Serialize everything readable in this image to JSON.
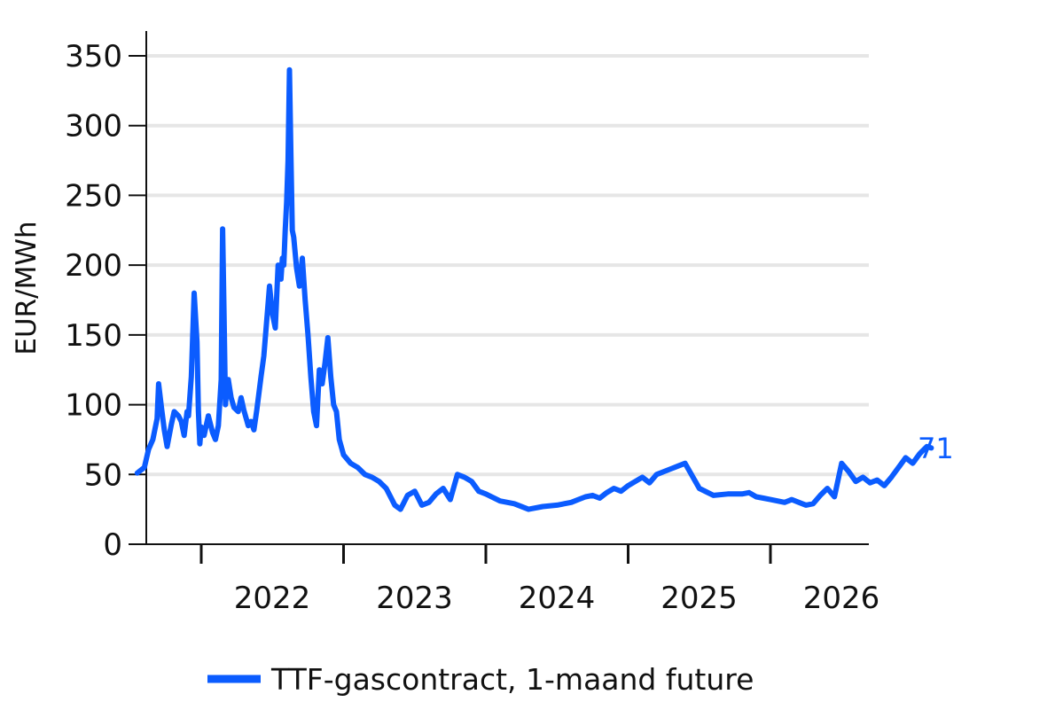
{
  "chart_data": {
    "type": "line",
    "ylabel": "EUR/MWh",
    "ylim": [
      0,
      350
    ],
    "yticks": [
      "0",
      "50",
      "100",
      "150",
      "200",
      "250",
      "300",
      "350"
    ],
    "xticks": [
      "2022",
      "2023",
      "2024",
      "2025",
      "2026"
    ],
    "grid": "horizontal",
    "legend_position": "bottom",
    "end_label": "71",
    "colors": {
      "series": "#0B5CFF",
      "axis": "#111111",
      "grid": "#e6e6e6"
    },
    "series": [
      {
        "name": "TTF-gascontract, 1-maand future",
        "x": [
          2021.55,
          2021.6,
          2021.63,
          2021.66,
          2021.69,
          2021.7,
          2021.72,
          2021.74,
          2021.76,
          2021.79,
          2021.81,
          2021.84,
          2021.86,
          2021.88,
          2021.9,
          2021.91,
          2021.93,
          2021.95,
          2021.97,
          2021.98,
          2021.99,
          2022.0,
          2022.02,
          2022.05,
          2022.08,
          2022.1,
          2022.12,
          2022.14,
          2022.15,
          2022.16,
          2022.17,
          2022.18,
          2022.19,
          2022.21,
          2022.23,
          2022.26,
          2022.28,
          2022.3,
          2022.33,
          2022.35,
          2022.37,
          2022.39,
          2022.42,
          2022.44,
          2022.46,
          2022.48,
          2022.5,
          2022.52,
          2022.54,
          2022.56,
          2022.57,
          2022.58,
          2022.59,
          2022.6,
          2022.61,
          2022.62,
          2022.63,
          2022.64,
          2022.65,
          2022.67,
          2022.69,
          2022.71,
          2022.73,
          2022.75,
          2022.77,
          2022.79,
          2022.81,
          2022.83,
          2022.85,
          2022.87,
          2022.89,
          2022.91,
          2022.93,
          2022.95,
          2022.97,
          2023.0,
          2023.05,
          2023.1,
          2023.15,
          2023.2,
          2023.25,
          2023.3,
          2023.33,
          2023.36,
          2023.4,
          2023.45,
          2023.5,
          2023.55,
          2023.6,
          2023.65,
          2023.7,
          2023.75,
          2023.8,
          2023.85,
          2023.9,
          2023.95,
          2024.0,
          2024.1,
          2024.2,
          2024.3,
          2024.4,
          2024.5,
          2024.6,
          2024.65,
          2024.7,
          2024.75,
          2024.8,
          2024.85,
          2024.9,
          2024.95,
          2025.0,
          2025.05,
          2025.1,
          2025.15,
          2025.2,
          2025.3,
          2025.4,
          2025.5,
          2025.6,
          2025.7,
          2025.8,
          2025.85,
          2025.9,
          2025.95,
          2026.0,
          2026.05,
          2026.1,
          2026.15,
          2026.2,
          2026.25,
          2026.3,
          2026.35,
          2026.4,
          2026.45,
          2026.5,
          2026.55,
          2026.6,
          2026.65,
          2026.7,
          2026.75,
          2026.8,
          2026.85,
          2026.9,
          2026.95,
          2027.0,
          2027.05,
          2027.1,
          2027.13
        ],
        "values": [
          51,
          55,
          68,
          75,
          90,
          115,
          98,
          82,
          70,
          86,
          95,
          92,
          88,
          78,
          95,
          92,
          120,
          180,
          145,
          95,
          72,
          84,
          78,
          92,
          80,
          75,
          85,
          118,
          226,
          165,
          100,
          112,
          118,
          105,
          98,
          95,
          105,
          96,
          85,
          88,
          82,
          96,
          120,
          135,
          160,
          185,
          165,
          155,
          200,
          190,
          205,
          200,
          225,
          245,
          275,
          340,
          280,
          225,
          220,
          198,
          185,
          205,
          175,
          150,
          120,
          95,
          85,
          125,
          115,
          130,
          148,
          120,
          100,
          95,
          75,
          64,
          58,
          55,
          50,
          48,
          45,
          40,
          34,
          28,
          25,
          35,
          38,
          28,
          30,
          36,
          40,
          32,
          50,
          48,
          45,
          38,
          36,
          31,
          29,
          25,
          27,
          28,
          30,
          32,
          34,
          35,
          33,
          37,
          40,
          38,
          42,
          45,
          48,
          44,
          50,
          54,
          58,
          40,
          35,
          36,
          36,
          37,
          34,
          33,
          32,
          31,
          30,
          32,
          30,
          28,
          29,
          35,
          40,
          34,
          58,
          52,
          45,
          48,
          44,
          46,
          42,
          48,
          55,
          62,
          58,
          65,
          70,
          69
        ]
      }
    ]
  }
}
